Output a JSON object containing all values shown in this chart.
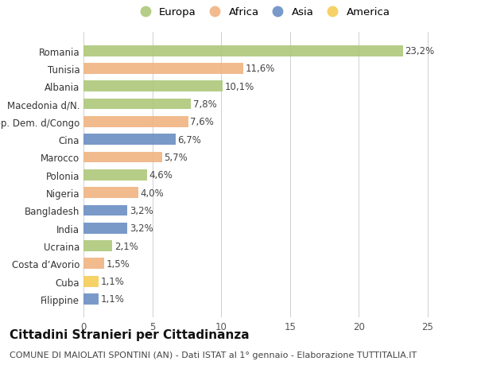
{
  "categories": [
    "Filippine",
    "Cuba",
    "Costa d’Avorio",
    "Ucraina",
    "India",
    "Bangladesh",
    "Nigeria",
    "Polonia",
    "Marocco",
    "Cina",
    "Rep. Dem. d/Congo",
    "Macedonia d/N.",
    "Albania",
    "Tunisia",
    "Romania"
  ],
  "values": [
    1.1,
    1.1,
    1.5,
    2.1,
    3.2,
    3.2,
    4.0,
    4.6,
    5.7,
    6.7,
    7.6,
    7.8,
    10.1,
    11.6,
    23.2
  ],
  "labels": [
    "1,1%",
    "1,1%",
    "1,5%",
    "2,1%",
    "3,2%",
    "3,2%",
    "4,0%",
    "4,6%",
    "5,7%",
    "6,7%",
    "7,6%",
    "7,8%",
    "10,1%",
    "11,6%",
    "23,2%"
  ],
  "continents": [
    "Asia",
    "America",
    "Africa",
    "Europa",
    "Asia",
    "Asia",
    "Africa",
    "Europa",
    "Africa",
    "Asia",
    "Africa",
    "Europa",
    "Europa",
    "Africa",
    "Europa"
  ],
  "continent_colors": {
    "Europa": "#adc87a",
    "Africa": "#f0b482",
    "Asia": "#6b8ec4",
    "America": "#f5cc55"
  },
  "legend_order": [
    "Europa",
    "Africa",
    "Asia",
    "America"
  ],
  "title": "Cittadini Stranieri per Cittadinanza",
  "subtitle": "COMUNE DI MAIOLATI SPONTINI (AN) - Dati ISTAT al 1° gennaio - Elaborazione TUTTITALIA.IT",
  "xlim": [
    0,
    26
  ],
  "xticks": [
    0,
    5,
    10,
    15,
    20,
    25
  ],
  "background_color": "#ffffff",
  "bar_height": 0.62,
  "label_fontsize": 8.5,
  "tick_fontsize": 8.5,
  "title_fontsize": 11,
  "subtitle_fontsize": 8,
  "legend_fontsize": 9.5
}
